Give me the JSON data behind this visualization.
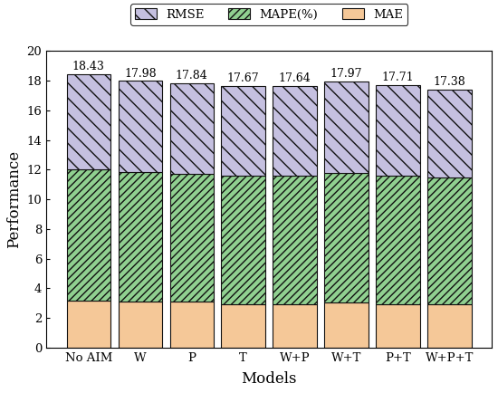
{
  "categories": [
    "No AIM",
    "W",
    "P",
    "T",
    "W+P",
    "W+T",
    "P+T",
    "W+P+T"
  ],
  "totals": [
    18.43,
    17.98,
    17.84,
    17.67,
    17.64,
    17.97,
    17.71,
    17.38
  ],
  "mae": [
    3.15,
    3.1,
    3.1,
    2.95,
    2.95,
    3.05,
    2.95,
    2.95
  ],
  "mape": [
    8.85,
    8.75,
    8.6,
    8.65,
    8.65,
    8.75,
    8.65,
    8.5
  ],
  "rmse_color": "#c5c0e0",
  "mape_color": "#90d090",
  "mae_color": "#f5c898",
  "rmse_hatch": "\\\\",
  "mape_hatch": "////",
  "mae_hatch": "",
  "ylabel": "Performance",
  "xlabel": "Models",
  "ylim": [
    0,
    20
  ],
  "yticks": [
    0,
    2,
    4,
    6,
    8,
    10,
    12,
    14,
    16,
    18,
    20
  ],
  "legend_labels": [
    "RMSE",
    "MAPE(%)",
    "MAE"
  ],
  "bar_width": 0.85,
  "edgecolor": "#111111",
  "annotation_fontsize": 9.0,
  "axis_fontsize": 12,
  "tick_fontsize": 9.5,
  "legend_fontsize": 9.5
}
